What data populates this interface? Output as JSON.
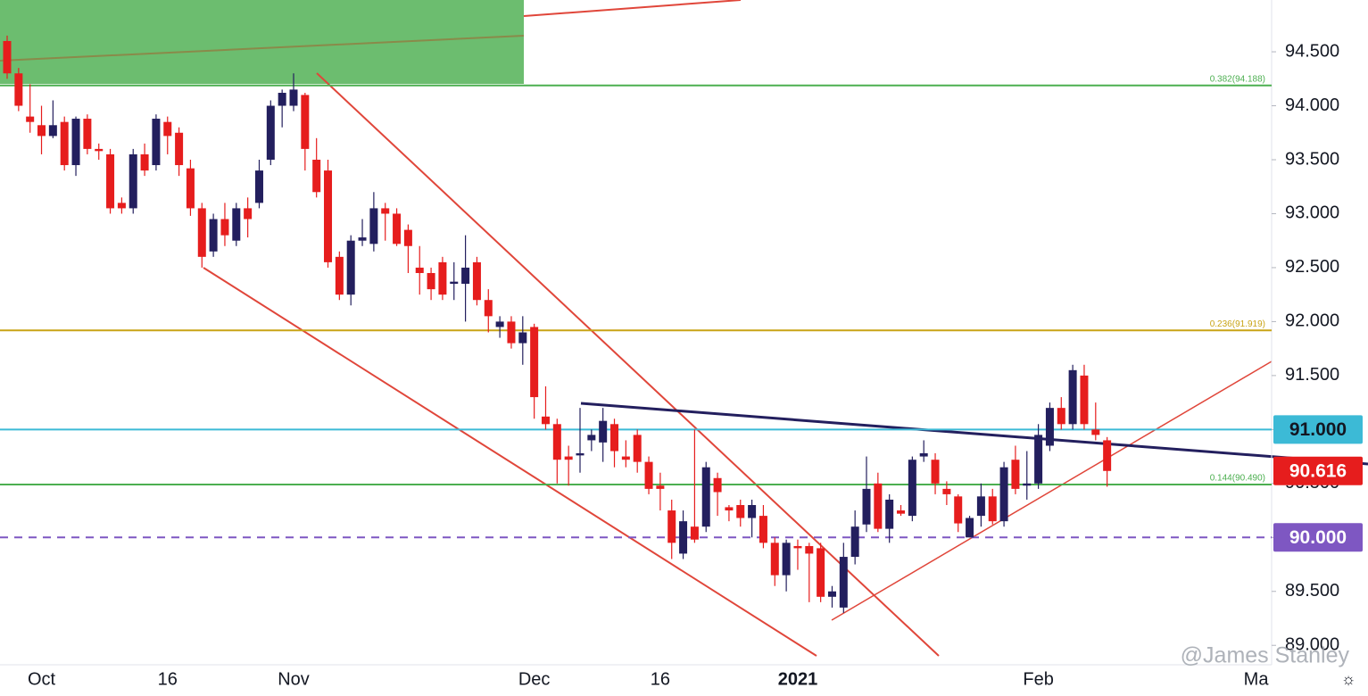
{
  "chart_data": {
    "type": "candlestick",
    "categories": [
      null,
      null,
      null,
      "Oct",
      null,
      null,
      null,
      null,
      null,
      null,
      null,
      null,
      null,
      null,
      "16",
      null,
      null,
      null,
      null,
      null,
      null,
      null,
      null,
      null,
      null,
      "Nov",
      null,
      null,
      null,
      null,
      null,
      null,
      null,
      null,
      null,
      null,
      null,
      null,
      null,
      null,
      null,
      null,
      null,
      null,
      null,
      null,
      "Dec",
      null,
      null,
      null,
      null,
      null,
      null,
      null,
      null,
      null,
      null,
      "16",
      null,
      null,
      null,
      null,
      null,
      null,
      null,
      null,
      null,
      null,
      null,
      "2021",
      null,
      null,
      null,
      null,
      null,
      null,
      null,
      null,
      null,
      null,
      null,
      null,
      null,
      null,
      null,
      null,
      null,
      null,
      null,
      null,
      "Feb",
      null,
      null,
      null,
      null,
      null,
      null,
      null,
      null,
      null,
      null,
      null,
      null,
      null,
      null,
      null,
      null,
      null,
      null,
      "Ma",
      null
    ],
    "open": [
      94.6,
      94.3,
      93.9,
      93.82,
      93.72,
      93.85,
      93.45,
      93.88,
      93.6,
      93.55,
      93.1,
      93.05,
      93.55,
      93.45,
      93.85,
      93.75,
      93.42,
      93.05,
      92.65,
      92.95,
      92.75,
      93.05,
      93.1,
      93.5,
      94.0,
      94.0,
      94.1,
      93.5,
      93.4,
      92.6,
      92.25,
      92.75,
      92.72,
      93.05,
      93.0,
      92.85,
      92.5,
      92.45,
      92.55,
      92.35,
      92.35,
      92.55,
      92.2,
      91.95,
      92.0,
      91.8,
      91.95,
      91.12,
      91.05,
      90.75,
      90.76,
      90.9,
      90.88,
      91.05,
      90.75,
      90.95,
      90.7,
      90.48,
      90.25,
      89.85,
      90.1,
      90.1,
      90.55,
      90.28,
      90.3,
      90.18,
      90.2,
      89.95,
      89.65,
      89.92,
      89.92,
      89.9,
      89.45,
      89.35,
      89.82,
      90.12,
      90.5,
      90.08,
      90.25,
      90.2,
      90.75,
      90.72,
      90.45,
      90.38,
      90.0,
      90.2,
      90.38,
      90.15,
      90.72,
      90.48,
      90.5,
      90.85,
      91.2,
      91.05,
      91.5,
      91.0,
      90.9,
      null,
      null,
      null,
      null,
      null,
      null,
      null,
      null,
      null,
      null,
      null,
      null,
      null,
      null
    ],
    "high": [
      94.65,
      94.35,
      94.2,
      94.0,
      94.05,
      93.9,
      93.9,
      93.92,
      93.65,
      93.6,
      93.15,
      93.6,
      93.65,
      93.92,
      93.9,
      93.8,
      93.5,
      93.1,
      93.0,
      93.1,
      93.1,
      93.15,
      93.5,
      94.05,
      94.15,
      94.3,
      94.12,
      93.7,
      93.5,
      92.65,
      92.8,
      92.95,
      93.2,
      93.1,
      93.05,
      92.9,
      92.7,
      92.5,
      92.6,
      92.55,
      92.8,
      92.6,
      92.3,
      92.05,
      92.05,
      92.05,
      91.98,
      91.4,
      91.1,
      90.85,
      91.2,
      91.0,
      91.2,
      91.1,
      90.9,
      91.0,
      90.75,
      90.6,
      90.35,
      90.25,
      91.0,
      90.7,
      90.6,
      90.3,
      90.35,
      90.35,
      90.3,
      90.0,
      89.98,
      89.98,
      89.95,
      89.95,
      89.55,
      89.95,
      90.25,
      90.75,
      90.6,
      90.4,
      90.3,
      90.75,
      90.9,
      90.78,
      90.52,
      90.4,
      90.2,
      90.5,
      90.45,
      90.7,
      90.85,
      90.8,
      91.05,
      91.25,
      91.3,
      91.6,
      91.6,
      91.25,
      90.93,
      null,
      null,
      null,
      null,
      null,
      null,
      null,
      null,
      null,
      null,
      null,
      null,
      null,
      null
    ],
    "low": [
      94.25,
      93.95,
      93.75,
      93.55,
      93.7,
      93.4,
      93.35,
      93.55,
      93.5,
      93.0,
      93.0,
      93.0,
      93.35,
      93.4,
      93.55,
      93.35,
      92.98,
      92.5,
      92.6,
      92.7,
      92.7,
      92.78,
      93.05,
      93.45,
      93.8,
      93.95,
      93.4,
      93.15,
      92.5,
      92.2,
      92.15,
      92.7,
      92.65,
      92.75,
      92.7,
      92.45,
      92.25,
      92.2,
      92.2,
      92.2,
      92.0,
      92.15,
      91.9,
      91.85,
      91.75,
      91.6,
      91.1,
      91.0,
      90.5,
      90.48,
      90.6,
      90.8,
      90.7,
      90.65,
      90.65,
      90.6,
      90.4,
      90.25,
      89.8,
      89.8,
      89.95,
      90.05,
      90.2,
      90.15,
      90.1,
      90.0,
      89.9,
      89.55,
      89.5,
      89.7,
      89.4,
      89.4,
      89.35,
      89.3,
      89.75,
      90.05,
      90.05,
      89.95,
      90.2,
      90.15,
      90.7,
      90.4,
      90.3,
      90.05,
      90.0,
      90.1,
      90.12,
      90.1,
      90.4,
      90.35,
      90.45,
      90.8,
      91.0,
      91.0,
      91.0,
      90.9,
      90.47,
      null,
      null,
      null,
      null,
      null,
      null,
      null,
      null,
      null,
      null,
      null,
      null,
      null,
      null
    ],
    "close": [
      94.3,
      94.0,
      93.85,
      93.72,
      93.82,
      93.45,
      93.88,
      93.6,
      93.58,
      93.05,
      93.05,
      93.55,
      93.4,
      93.88,
      93.72,
      93.45,
      93.05,
      92.6,
      92.95,
      92.8,
      93.05,
      92.95,
      93.4,
      94.0,
      94.12,
      94.15,
      93.6,
      93.2,
      92.55,
      92.25,
      92.75,
      92.78,
      93.05,
      93.0,
      92.72,
      92.7,
      92.45,
      92.3,
      92.25,
      92.37,
      92.5,
      92.2,
      92.05,
      92.0,
      91.8,
      91.9,
      91.3,
      91.05,
      90.72,
      90.72,
      90.78,
      90.95,
      91.08,
      90.8,
      90.72,
      90.7,
      90.45,
      90.45,
      89.95,
      90.15,
      89.98,
      90.65,
      90.42,
      90.25,
      90.18,
      90.3,
      89.95,
      89.65,
      89.95,
      89.9,
      89.85,
      89.45,
      89.5,
      89.82,
      90.1,
      90.45,
      90.08,
      90.35,
      90.22,
      90.72,
      90.78,
      90.5,
      90.4,
      90.13,
      90.18,
      90.38,
      90.15,
      90.65,
      90.45,
      90.5,
      90.95,
      91.2,
      91.05,
      91.55,
      91.05,
      90.95,
      90.616,
      null,
      null,
      null,
      null,
      null,
      null,
      null,
      null,
      null,
      null,
      null,
      null,
      null,
      null
    ],
    "up_color": "#231f5e",
    "down_color": "#e61d1d",
    "ylim": [
      88.82,
      94.98
    ],
    "yticks": [
      {
        "value": 89,
        "label": "89.000"
      },
      {
        "value": 89.5,
        "label": "89.500"
      },
      {
        "value": 90,
        "label": "90.000"
      },
      {
        "value": 90.5,
        "label": "90.500"
      },
      {
        "value": 91,
        "label": "91.000"
      },
      {
        "value": 91.5,
        "label": "91.500"
      },
      {
        "value": 92,
        "label": "92.000"
      },
      {
        "value": 92.5,
        "label": "92.500"
      },
      {
        "value": 93,
        "label": "93.000"
      },
      {
        "value": 93.5,
        "label": "93.500"
      },
      {
        "value": 94,
        "label": "94.000"
      },
      {
        "value": 94.5,
        "label": "94.500"
      }
    ],
    "levels": [
      {
        "value": 94.188,
        "color": "#4caf50",
        "label": "0.382(94.188)",
        "dashed": false
      },
      {
        "value": 91.919,
        "color": "#c9a416",
        "label": "0.236(91.919)",
        "dashed": false
      },
      {
        "value": 91.0,
        "color": "#3cbad6",
        "dashed": false
      },
      {
        "value": 90.49,
        "color": "#4caf50",
        "label": "0.144(90.490)",
        "dashed": false
      },
      {
        "value": 90.0,
        "color": "#7e57c2",
        "dashed": true
      }
    ],
    "price_tags": [
      {
        "value": 91.0,
        "label": "91.000",
        "color": "#3cbad6",
        "text_color": "#131722"
      },
      {
        "value": 90.616,
        "label": "90.616",
        "color": "#e61d1d",
        "text_color": "#ffffff"
      },
      {
        "value": 90.0,
        "label": "90.000",
        "color": "#7e57c2",
        "text_color": "#ffffff"
      }
    ],
    "watermark": "@James Stanley"
  }
}
